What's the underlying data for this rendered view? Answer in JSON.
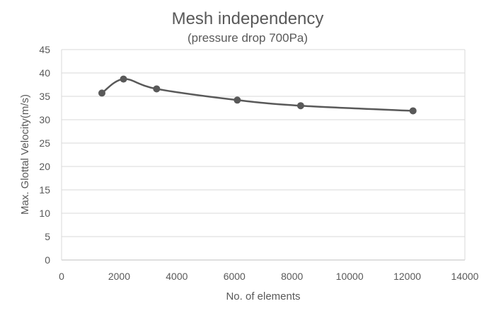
{
  "chart_data": {
    "type": "line",
    "title": "Mesh independency",
    "subtitle": "(pressure drop 700Pa)",
    "xlabel": "No. of elements",
    "ylabel": "Max. Glottal Velocity(m/s)",
    "xlim": [
      0,
      14000
    ],
    "ylim": [
      0,
      45
    ],
    "xticks": [
      0,
      2000,
      4000,
      6000,
      8000,
      10000,
      12000,
      14000
    ],
    "yticks": [
      0,
      5,
      10,
      15,
      20,
      25,
      30,
      35,
      40,
      45
    ],
    "grid": "horizontal",
    "legend": "none",
    "smooth": true,
    "series": [
      {
        "name": "Max. Glottal Velocity",
        "color": "#595959",
        "x": [
          1400,
          2150,
          3300,
          6100,
          8300,
          12200
        ],
        "y": [
          35.7,
          38.7,
          36.6,
          34.2,
          33.0,
          31.9
        ]
      }
    ]
  }
}
